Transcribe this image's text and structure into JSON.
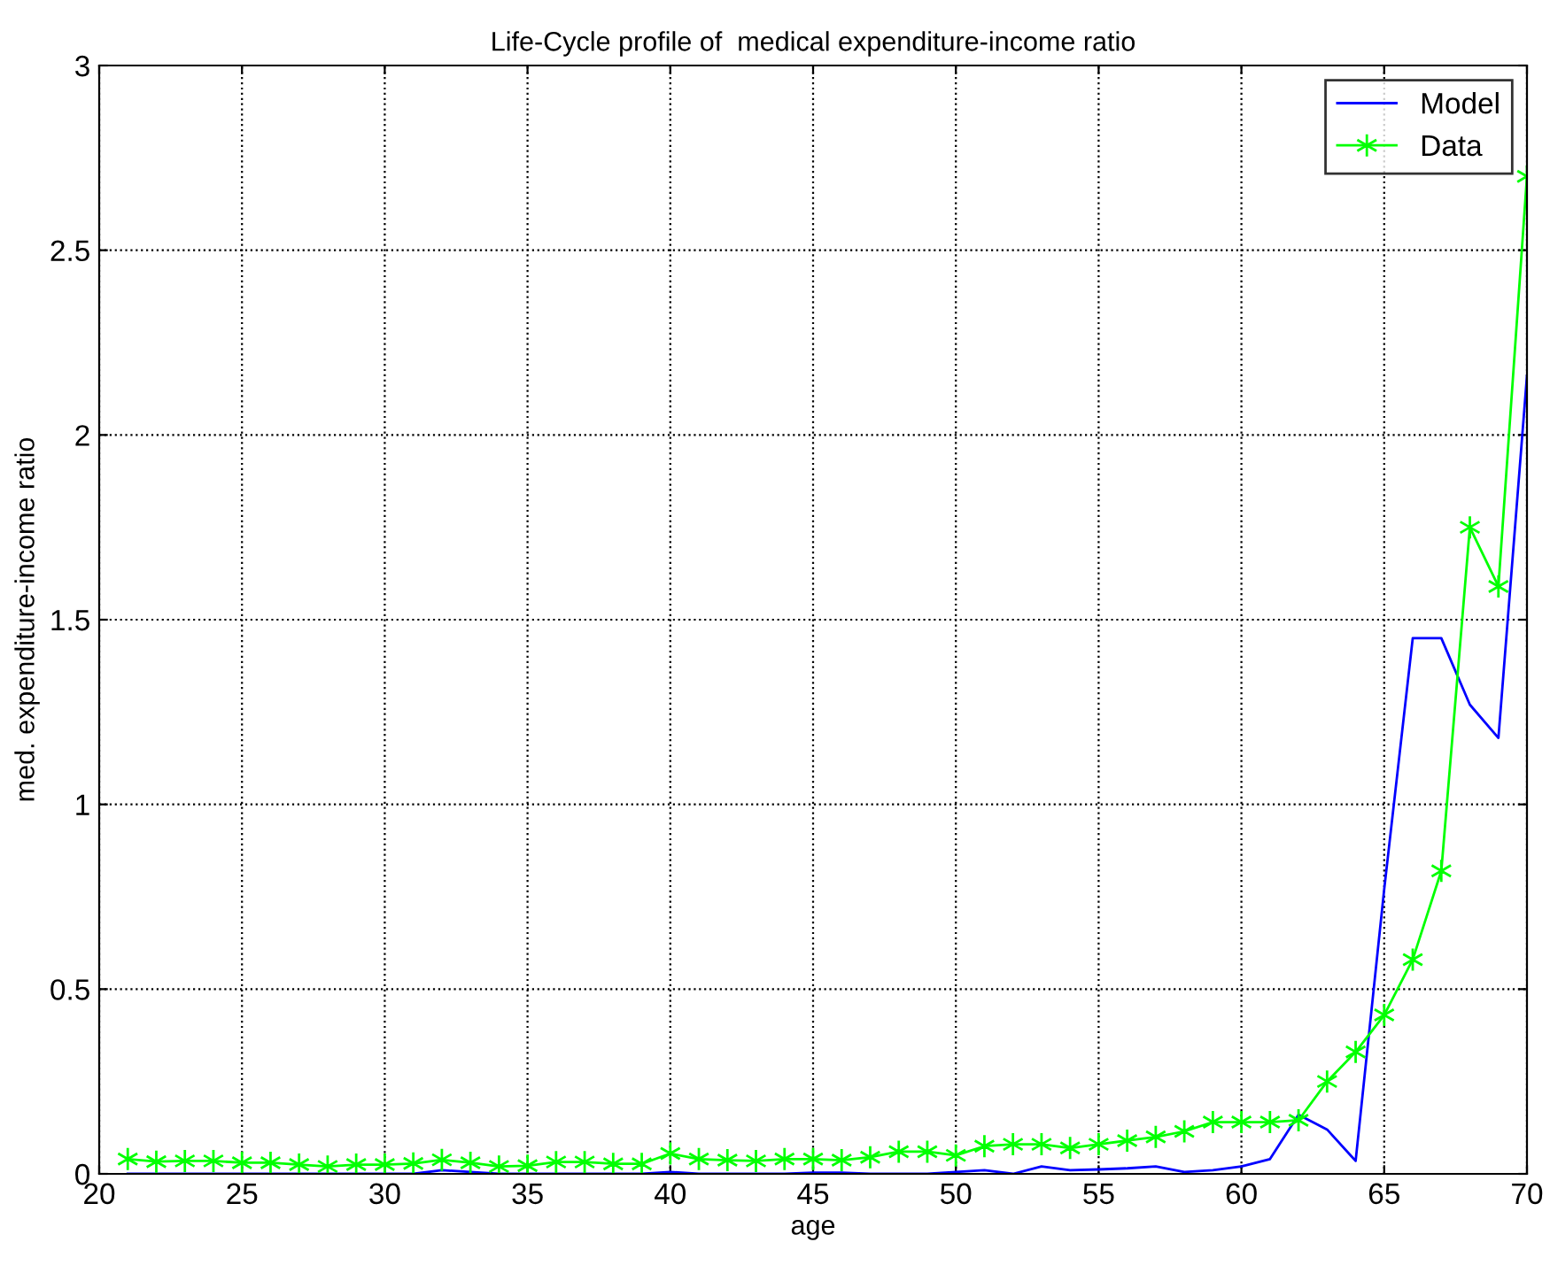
{
  "chart_data": {
    "type": "line",
    "title": "Life-Cycle profile of  medical expenditure-income ratio",
    "xlabel": "age",
    "ylabel": "med. expenditure-income ratio",
    "x": [
      21,
      22,
      23,
      24,
      25,
      26,
      27,
      28,
      29,
      30,
      31,
      32,
      33,
      34,
      35,
      36,
      37,
      38,
      39,
      40,
      41,
      42,
      43,
      44,
      45,
      46,
      47,
      48,
      49,
      50,
      51,
      52,
      53,
      54,
      55,
      56,
      57,
      58,
      59,
      60,
      61,
      62,
      63,
      64,
      65,
      66,
      67,
      68,
      69,
      70
    ],
    "series": [
      {
        "name": "Model",
        "color": "#0000ff",
        "marker": "none",
        "values": [
          0,
          0,
          0,
          0,
          0,
          0,
          0,
          0,
          0,
          0,
          0,
          0.01,
          0.005,
          0,
          0,
          0,
          0,
          0,
          0,
          0.005,
          0,
          0,
          0,
          0,
          0.003,
          0.003,
          0,
          0,
          0,
          0.005,
          0.01,
          0,
          0.02,
          0.01,
          0.012,
          0.015,
          0.02,
          0.005,
          0.01,
          0.02,
          0.04,
          0.16,
          0.12,
          0.035,
          0.77,
          1.45,
          1.45,
          1.27,
          1.18,
          2.16
        ]
      },
      {
        "name": "Data",
        "color": "#00ff00",
        "marker": "cross",
        "values": [
          0.04,
          0.033,
          0.035,
          0.035,
          0.03,
          0.03,
          0.025,
          0.02,
          0.025,
          0.025,
          0.028,
          0.038,
          0.03,
          0.02,
          0.022,
          0.032,
          0.032,
          0.027,
          0.027,
          0.055,
          0.04,
          0.037,
          0.035,
          0.04,
          0.04,
          0.037,
          0.045,
          0.06,
          0.06,
          0.05,
          0.075,
          0.08,
          0.08,
          0.07,
          0.08,
          0.09,
          0.1,
          0.115,
          0.14,
          0.14,
          0.14,
          0.145,
          0.25,
          0.33,
          0.43,
          0.58,
          0.82,
          1.75,
          1.59,
          2.7
        ]
      }
    ],
    "xlim": [
      20,
      70
    ],
    "xticks": [
      20,
      25,
      30,
      35,
      40,
      45,
      50,
      55,
      60,
      65,
      70
    ],
    "ylim": [
      0,
      3
    ],
    "yticks": [
      0,
      0.5,
      1,
      1.5,
      2,
      2.5,
      3
    ],
    "grid": true,
    "legend": "top right"
  }
}
